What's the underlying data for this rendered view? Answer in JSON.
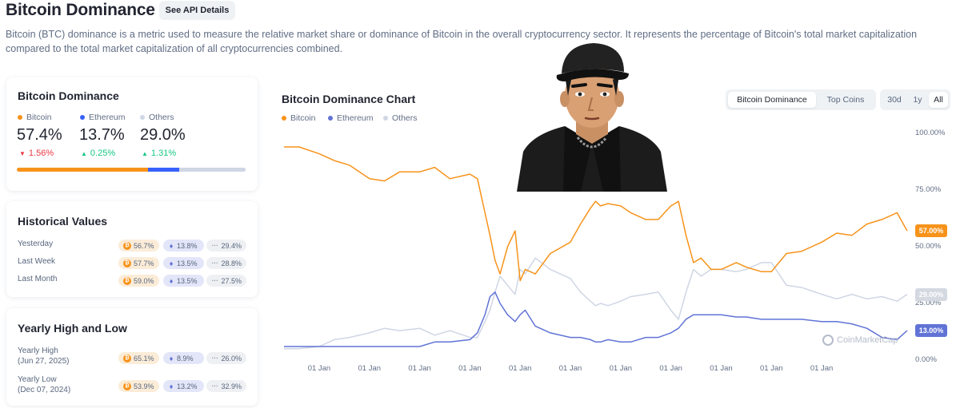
{
  "header": {
    "title": "Bitcoin Dominance",
    "api_button": "See API Details",
    "description": "Bitcoin (BTC) dominance is a metric used to measure the relative market share or dominance of Bitcoin in the overall cryptocurrency sector. It represents the percentage of Bitcoin's total market capitalization compared to the total market capitalization of all cryptocurrencies combined."
  },
  "colors": {
    "bitcoin": "#f7931a",
    "ethereum": "#6173d6",
    "others": "#cfd6e4",
    "down": "#ea3943",
    "up": "#16c784"
  },
  "summary": {
    "title": "Bitcoin Dominance",
    "items": [
      {
        "name": "Bitcoin",
        "value": "57.4%",
        "change": "1.56%",
        "direction": "down"
      },
      {
        "name": "Ethereum",
        "value": "13.7%",
        "change": "0.25%",
        "direction": "up"
      },
      {
        "name": "Others",
        "value": "29.0%",
        "change": "1.31%",
        "direction": "up"
      }
    ],
    "bar_fractions": [
      0.574,
      0.137,
      0.29
    ]
  },
  "historical": {
    "title": "Historical Values",
    "rows": [
      {
        "label": "Yesterday",
        "btc": "56.7%",
        "eth": "13.8%",
        "others": "29.4%"
      },
      {
        "label": "Last Week",
        "btc": "57.7%",
        "eth": "13.5%",
        "others": "28.8%"
      },
      {
        "label": "Last Month",
        "btc": "59.0%",
        "eth": "13.5%",
        "others": "27.5%"
      }
    ]
  },
  "yearly": {
    "title": "Yearly High and Low",
    "rows": [
      {
        "label": "Yearly High",
        "date": "(Jun 27, 2025)",
        "btc": "65.1%",
        "eth": "8.9%",
        "others": "26.0%"
      },
      {
        "label": "Yearly Low",
        "date": "(Dec 07, 2024)",
        "btc": "53.9%",
        "eth": "13.2%",
        "others": "32.9%"
      }
    ]
  },
  "chart_panel": {
    "title": "Bitcoin Dominance Chart",
    "view_tabs": [
      "Bitcoin Dominance",
      "Top Coins"
    ],
    "active_view": "Bitcoin Dominance",
    "range_tabs": [
      "30d",
      "1y",
      "All"
    ],
    "active_range": "All",
    "watermark": "CoinMarketCap"
  },
  "chart_data": {
    "type": "line",
    "x": [
      2013.3,
      2013.6,
      2014.0,
      2014.3,
      2014.6,
      2015.0,
      2015.3,
      2015.6,
      2016.0,
      2016.3,
      2016.6,
      2017.0,
      2017.15,
      2017.3,
      2017.4,
      2017.5,
      2017.6,
      2017.75,
      2017.9,
      2018.0,
      2018.1,
      2018.3,
      2018.6,
      2019.0,
      2019.2,
      2019.4,
      2019.5,
      2019.6,
      2019.75,
      2020.0,
      2020.2,
      2020.5,
      2020.75,
      2021.0,
      2021.15,
      2021.3,
      2021.45,
      2021.6,
      2021.8,
      2022.0,
      2022.3,
      2022.5,
      2022.8,
      2023.0,
      2023.3,
      2023.6,
      2024.0,
      2024.3,
      2024.6,
      2024.9,
      2025.2,
      2025.5,
      2025.7
    ],
    "series": [
      {
        "name": "Bitcoin",
        "color": "#f7931a",
        "values": [
          94,
          94,
          91,
          88,
          86,
          80,
          79,
          83,
          83,
          85,
          80,
          82,
          80,
          65,
          55,
          44,
          38,
          50,
          57,
          35,
          40,
          38,
          47,
          52,
          60,
          67,
          70,
          68,
          69,
          68,
          65,
          62,
          62,
          68,
          70,
          55,
          43,
          45,
          40,
          40,
          43,
          41,
          39,
          39,
          47,
          48,
          52,
          56,
          55,
          60,
          62,
          65,
          57
        ]
      },
      {
        "name": "Ethereum",
        "color": "#6173d6",
        "values": [
          6,
          6,
          6,
          6,
          6,
          6,
          6,
          6,
          6,
          8,
          8,
          9,
          12,
          20,
          28,
          30,
          25,
          20,
          17,
          20,
          22,
          15,
          12,
          10,
          10,
          9,
          8,
          8,
          9,
          8,
          8,
          10,
          10,
          12,
          14,
          18,
          20,
          20,
          20,
          20,
          19,
          19,
          18,
          18,
          18,
          18,
          17,
          17,
          16,
          14,
          10,
          9,
          13
        ]
      },
      {
        "name": "Others",
        "color": "#cfd6e4",
        "values": [
          5,
          5,
          6,
          9,
          10,
          12,
          14,
          13,
          14,
          11,
          13,
          10,
          10,
          17,
          22,
          30,
          37,
          33,
          29,
          40,
          38,
          45,
          40,
          36,
          30,
          26,
          24,
          25,
          24,
          26,
          28,
          29,
          30,
          22,
          18,
          30,
          40,
          37,
          40,
          40,
          39,
          40,
          43,
          43,
          33,
          32,
          29,
          27,
          29,
          27,
          28,
          26,
          29
        ]
      }
    ],
    "ylim": [
      0,
      100
    ],
    "y_ticks": [
      "0.00%",
      "25.00%",
      "50.00%",
      "75.00%",
      "100.00%"
    ],
    "x_ticks": [
      "01 Jan",
      "01 Jan",
      "01 Jan",
      "01 Jan",
      "01 Jan",
      "01 Jan",
      "01 Jan",
      "01 Jan",
      "01 Jan",
      "01 Jan",
      "01 Jan"
    ],
    "x_tick_values": [
      2014,
      2015,
      2016,
      2017,
      2018,
      2019,
      2020,
      2021,
      2022,
      2023,
      2024
    ],
    "xlim": [
      2013.3,
      2025.75
    ],
    "last_values": [
      {
        "series": "Bitcoin",
        "label": "57.00%",
        "value": 57
      },
      {
        "series": "Others",
        "label": "29.00%",
        "value": 29
      },
      {
        "series": "Ethereum",
        "label": "13.00%",
        "value": 13
      }
    ],
    "grid": false,
    "legend": "top-left"
  }
}
